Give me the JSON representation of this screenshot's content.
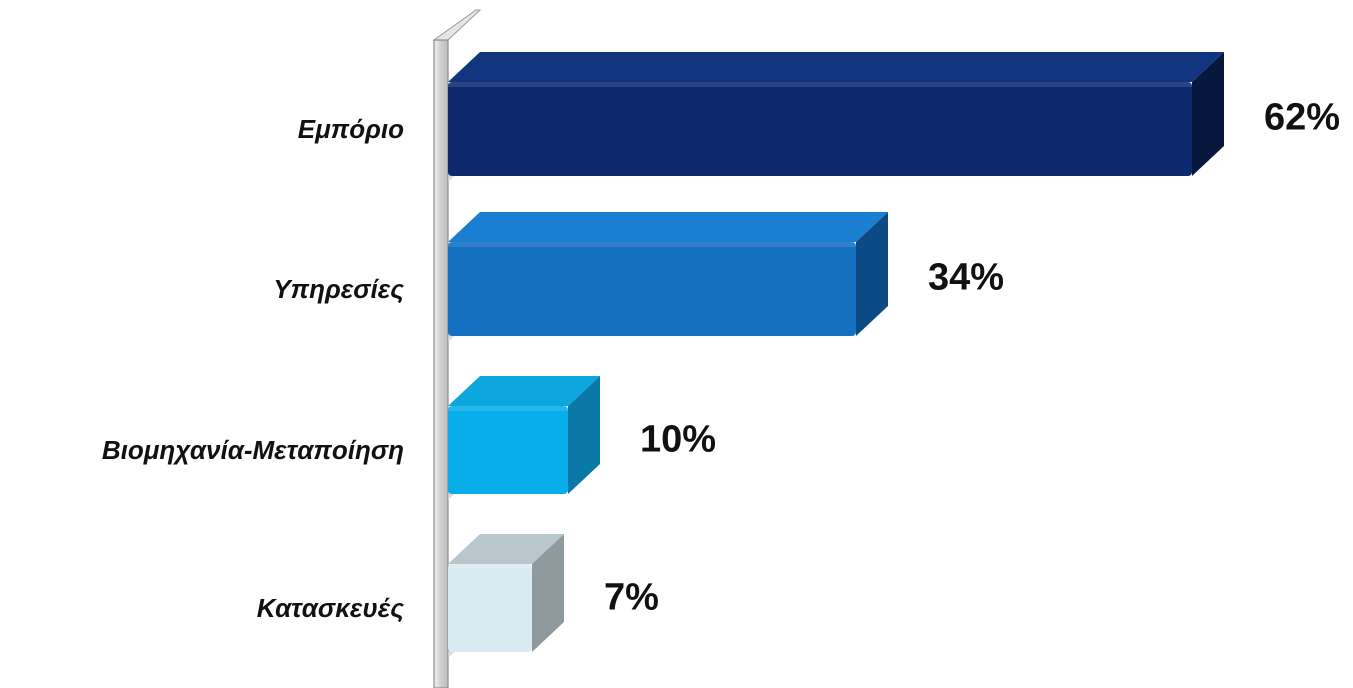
{
  "chart_data": {
    "type": "bar",
    "orientation": "horizontal",
    "style": "3d",
    "categories": [
      "Εμπόριο",
      "Υπηρεσίες",
      "Βιομηχανία-Μεταποίηση",
      "Κατασκευές"
    ],
    "values": [
      62,
      34,
      10,
      7
    ],
    "value_labels": [
      "62%",
      "34%",
      "10%",
      "7%"
    ],
    "unit": "%",
    "xlim": [
      0,
      62
    ],
    "grid": false,
    "legend": "none",
    "colors": {
      "Εμπόριο": {
        "front": "#0e2a6e",
        "top": "#123580",
        "side": "#07183f"
      },
      "Υπηρεσίες": {
        "front": "#1470c0",
        "top": "#1b7fd1",
        "side": "#0c4a86"
      },
      "Βιομηχανία-Μεταποίηση": {
        "front": "#08aee8",
        "top": "#0ea7dd",
        "side": "#0a79a8"
      },
      "Κατασκευές": {
        "front": "#d8ebf2",
        "top": "#b9c6cc",
        "side": "#8f9a9f"
      }
    },
    "wall_color": "#d6d6d6"
  }
}
